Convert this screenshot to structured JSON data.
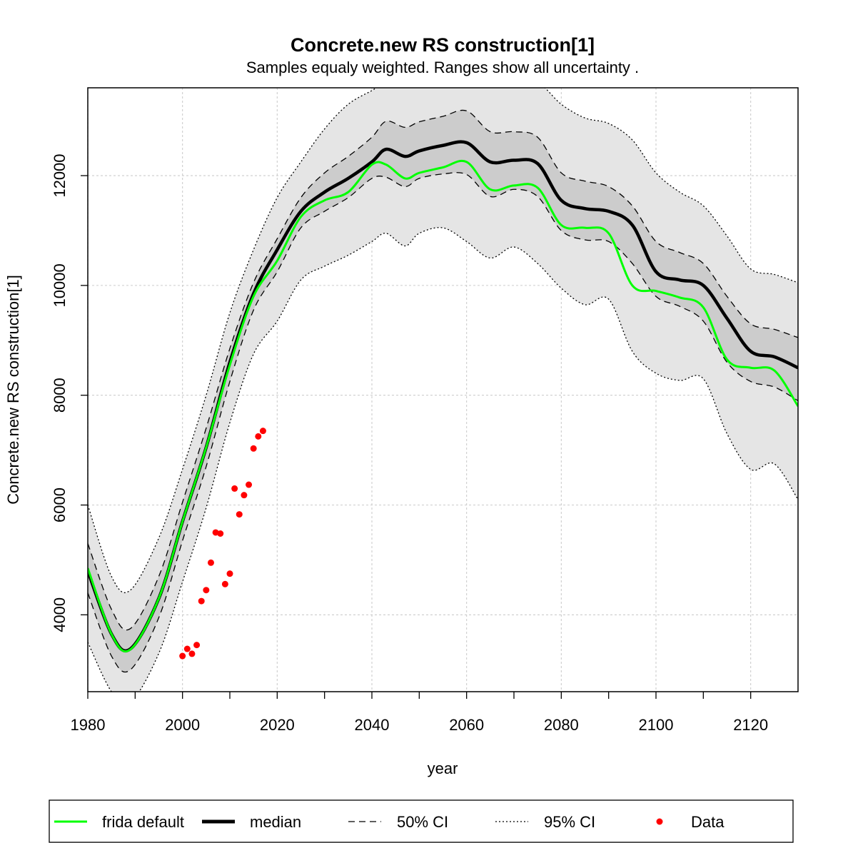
{
  "chart_data": {
    "type": "line",
    "title": "Concrete.new RS construction[1]",
    "subtitle": "Samples equaly weighted. Ranges show  all uncertainty .",
    "xlabel": "year",
    "ylabel": "Concrete.new RS construction[1]",
    "xlim": [
      1980,
      2130
    ],
    "ylim": [
      2600,
      13600
    ],
    "xticks": [
      1980,
      2000,
      2020,
      2040,
      2060,
      2080,
      2100,
      2120
    ],
    "yticks": [
      4000,
      6000,
      8000,
      10000,
      12000
    ],
    "grid": true,
    "legend_position": "bottom",
    "colors": {
      "frida_default": "#00ff00",
      "median": "#000000",
      "ci50_fill": "#cccccc",
      "ci95_fill": "#e5e5e5",
      "data": "#ff0000"
    },
    "x": [
      1980,
      1985,
      1989,
      1995,
      2000,
      2005,
      2010,
      2015,
      2020,
      2025,
      2030,
      2035,
      2040,
      2043,
      2047,
      2050,
      2055,
      2060,
      2065,
      2070,
      2075,
      2080,
      2085,
      2090,
      2095,
      2100,
      2105,
      2110,
      2115,
      2120,
      2125,
      2130
    ],
    "series": [
      {
        "name": "frida default",
        "role": "frida",
        "values": [
          4850,
          3650,
          3370,
          4300,
          5700,
          7050,
          8550,
          9800,
          10450,
          11250,
          11550,
          11700,
          12200,
          12200,
          11950,
          12050,
          12150,
          12250,
          11750,
          11820,
          11780,
          11100,
          11050,
          10950,
          10000,
          9900,
          9780,
          9600,
          8650,
          8500,
          8450,
          7800
        ]
      },
      {
        "name": "median",
        "role": "median",
        "values": [
          4800,
          3650,
          3380,
          4300,
          5700,
          7050,
          8600,
          9850,
          10650,
          11350,
          11700,
          11950,
          12250,
          12480,
          12350,
          12450,
          12550,
          12600,
          12250,
          12280,
          12220,
          11550,
          11400,
          11350,
          11100,
          10250,
          10100,
          10000,
          9400,
          8800,
          8700,
          8500
        ]
      },
      {
        "name": "50% CI upper",
        "role": "ci50_upper",
        "values": [
          5300,
          4100,
          3750,
          4700,
          6050,
          7400,
          8850,
          10050,
          10850,
          11600,
          12050,
          12350,
          12700,
          12990,
          12880,
          12980,
          13080,
          13180,
          12800,
          12800,
          12700,
          12050,
          11900,
          11800,
          11450,
          10800,
          10600,
          10400,
          9800,
          9300,
          9200,
          9050
        ]
      },
      {
        "name": "50% CI lower",
        "role": "ci50_lower",
        "values": [
          4400,
          3250,
          3000,
          3950,
          5350,
          6700,
          8250,
          9550,
          10250,
          11050,
          11350,
          11600,
          11950,
          11970,
          11800,
          11950,
          12030,
          12020,
          11620,
          11750,
          11620,
          11000,
          10830,
          10800,
          10400,
          9800,
          9620,
          9350,
          8600,
          8250,
          8150,
          7900
        ]
      },
      {
        "name": "95% CI upper",
        "role": "ci95_upper",
        "values": [
          6000,
          4700,
          4450,
          5400,
          6650,
          8000,
          9500,
          10650,
          11600,
          12250,
          12850,
          13300,
          13550,
          13700,
          13700,
          13700,
          13700,
          13700,
          13700,
          13700,
          13700,
          13300,
          13050,
          12950,
          12650,
          12050,
          11700,
          11450,
          10900,
          10300,
          10200,
          10050
        ]
      },
      {
        "name": "95% CI lower",
        "role": "ci95_lower",
        "values": [
          3500,
          2600,
          2400,
          3300,
          4600,
          5950,
          7500,
          8750,
          9350,
          10100,
          10350,
          10550,
          10800,
          10950,
          10720,
          10950,
          11050,
          10800,
          10500,
          10700,
          10400,
          9950,
          9650,
          9750,
          8800,
          8400,
          8270,
          8300,
          7300,
          6650,
          6750,
          6100
        ]
      }
    ],
    "data_points": [
      {
        "x": 2000,
        "y": 3250
      },
      {
        "x": 2001,
        "y": 3380
      },
      {
        "x": 2002,
        "y": 3290
      },
      {
        "x": 2003,
        "y": 3450
      },
      {
        "x": 2004,
        "y": 4250
      },
      {
        "x": 2005,
        "y": 4450
      },
      {
        "x": 2006,
        "y": 4950
      },
      {
        "x": 2007,
        "y": 5500
      },
      {
        "x": 2008,
        "y": 5480
      },
      {
        "x": 2009,
        "y": 4560
      },
      {
        "x": 2010,
        "y": 4750
      },
      {
        "x": 2011,
        "y": 6300
      },
      {
        "x": 2012,
        "y": 5830
      },
      {
        "x": 2013,
        "y": 6180
      },
      {
        "x": 2014,
        "y": 6370
      },
      {
        "x": 2015,
        "y": 7030
      },
      {
        "x": 2016,
        "y": 7250
      },
      {
        "x": 2017,
        "y": 7350
      }
    ],
    "legend": {
      "frida": "frida default",
      "median": "median",
      "ci50": "50% CI",
      "ci95": "95% CI",
      "data": "Data"
    }
  }
}
